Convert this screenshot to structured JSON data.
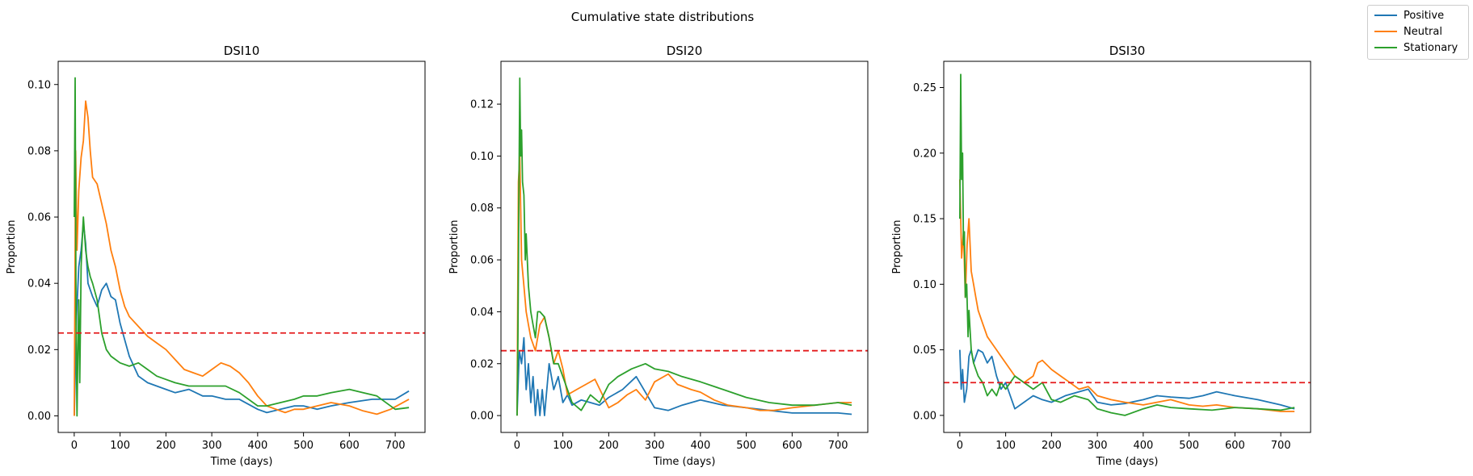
{
  "figure": {
    "title": "Cumulative state distributions"
  },
  "legend": {
    "placement": "top-right",
    "entries": [
      {
        "name": "Positive",
        "color": "#1f77b4"
      },
      {
        "name": "Neutral",
        "color": "#ff7f0e"
      },
      {
        "name": "Stationary",
        "color": "#2ca02c"
      }
    ]
  },
  "chart_data": [
    {
      "type": "line",
      "title": "DSI10",
      "xlabel": "Time (days)",
      "ylabel": "Proportion",
      "xlim": [
        -35,
        765
      ],
      "ylim": [
        -0.005,
        0.107
      ],
      "xticks": [
        0,
        100,
        200,
        300,
        400,
        500,
        600,
        700
      ],
      "xtick_labels": [
        "0",
        "100",
        "200",
        "300",
        "400",
        "500",
        "600",
        "700"
      ],
      "yticks": [
        0,
        0.02,
        0.04,
        0.06,
        0.08,
        0.1
      ],
      "ytick_labels": [
        "0.00",
        "0.02",
        "0.04",
        "0.06",
        "0.08",
        "0.10"
      ],
      "reference_line": {
        "y": 0.025,
        "style": "dashed",
        "color": "#e41a1c"
      },
      "grid": false,
      "series": [
        {
          "name": "Positive",
          "color": "#1f77b4",
          "x": [
            0,
            5,
            10,
            15,
            20,
            25,
            30,
            40,
            50,
            60,
            70,
            80,
            90,
            100,
            120,
            140,
            160,
            180,
            200,
            220,
            250,
            280,
            300,
            330,
            360,
            400,
            420,
            450,
            480,
            500,
            530,
            560,
            600,
            650,
            700,
            730
          ],
          "y": [
            0.0,
            0.03,
            0.045,
            0.05,
            0.058,
            0.052,
            0.04,
            0.036,
            0.033,
            0.038,
            0.04,
            0.036,
            0.035,
            0.028,
            0.018,
            0.012,
            0.01,
            0.009,
            0.008,
            0.007,
            0.008,
            0.006,
            0.006,
            0.005,
            0.005,
            0.002,
            0.001,
            0.002,
            0.003,
            0.003,
            0.002,
            0.003,
            0.004,
            0.005,
            0.005,
            0.0075
          ]
        },
        {
          "name": "Neutral",
          "color": "#ff7f0e",
          "x": [
            0,
            3,
            6,
            10,
            15,
            20,
            25,
            30,
            35,
            40,
            50,
            60,
            70,
            80,
            90,
            100,
            110,
            120,
            140,
            160,
            180,
            200,
            220,
            240,
            260,
            280,
            300,
            320,
            340,
            360,
            380,
            400,
            420,
            440,
            460,
            480,
            500,
            530,
            560,
            600,
            630,
            660,
            690,
            730
          ],
          "y": [
            0.0,
            0.08,
            0.05,
            0.068,
            0.078,
            0.083,
            0.095,
            0.09,
            0.08,
            0.072,
            0.07,
            0.064,
            0.058,
            0.05,
            0.045,
            0.038,
            0.033,
            0.03,
            0.027,
            0.024,
            0.022,
            0.02,
            0.017,
            0.014,
            0.013,
            0.012,
            0.014,
            0.016,
            0.015,
            0.013,
            0.01,
            0.006,
            0.003,
            0.002,
            0.001,
            0.002,
            0.002,
            0.003,
            0.004,
            0.003,
            0.0015,
            0.0005,
            0.002,
            0.005
          ]
        },
        {
          "name": "Stationary",
          "color": "#2ca02c",
          "x": [
            0,
            2,
            4,
            6,
            8,
            10,
            12,
            15,
            18,
            20,
            25,
            30,
            35,
            40,
            50,
            60,
            70,
            80,
            90,
            100,
            120,
            140,
            160,
            180,
            200,
            220,
            250,
            280,
            300,
            330,
            360,
            400,
            420,
            450,
            480,
            500,
            530,
            560,
            600,
            630,
            660,
            700,
            730
          ],
          "y": [
            0.06,
            0.102,
            0.03,
            0.0,
            0.02,
            0.035,
            0.01,
            0.045,
            0.055,
            0.06,
            0.05,
            0.045,
            0.042,
            0.04,
            0.035,
            0.025,
            0.02,
            0.018,
            0.017,
            0.016,
            0.015,
            0.016,
            0.014,
            0.012,
            0.011,
            0.01,
            0.009,
            0.009,
            0.009,
            0.009,
            0.007,
            0.003,
            0.003,
            0.004,
            0.005,
            0.006,
            0.006,
            0.007,
            0.008,
            0.007,
            0.006,
            0.002,
            0.0025
          ]
        }
      ]
    },
    {
      "type": "line",
      "title": "DSI20",
      "xlabel": "Time (days)",
      "ylabel": "Proportion",
      "xlim": [
        -35,
        765
      ],
      "ylim": [
        -0.0065,
        0.1365
      ],
      "xticks": [
        0,
        100,
        200,
        300,
        400,
        500,
        600,
        700
      ],
      "xtick_labels": [
        "0",
        "100",
        "200",
        "300",
        "400",
        "500",
        "600",
        "700"
      ],
      "yticks": [
        0,
        0.02,
        0.04,
        0.06,
        0.08,
        0.1,
        0.12
      ],
      "ytick_labels": [
        "0.00",
        "0.02",
        "0.04",
        "0.06",
        "0.08",
        "0.10",
        "0.12"
      ],
      "reference_line": {
        "y": 0.025,
        "style": "dashed",
        "color": "#e41a1c"
      },
      "grid": false,
      "series": [
        {
          "name": "Positive",
          "color": "#1f77b4",
          "x": [
            0,
            5,
            10,
            15,
            20,
            25,
            30,
            35,
            40,
            45,
            50,
            55,
            60,
            70,
            80,
            90,
            100,
            110,
            120,
            140,
            160,
            180,
            200,
            230,
            260,
            300,
            330,
            360,
            400,
            450,
            500,
            550,
            600,
            650,
            700,
            730
          ],
          "y": [
            0.0,
            0.025,
            0.02,
            0.03,
            0.01,
            0.02,
            0.005,
            0.015,
            0.0,
            0.01,
            0.0,
            0.01,
            0.0,
            0.02,
            0.01,
            0.015,
            0.005,
            0.008,
            0.004,
            0.006,
            0.005,
            0.004,
            0.007,
            0.01,
            0.015,
            0.003,
            0.002,
            0.004,
            0.006,
            0.004,
            0.003,
            0.002,
            0.001,
            0.001,
            0.001,
            0.0005
          ]
        },
        {
          "name": "Neutral",
          "color": "#ff7f0e",
          "x": [
            0,
            3,
            6,
            10,
            15,
            20,
            25,
            30,
            40,
            50,
            60,
            70,
            80,
            90,
            100,
            110,
            130,
            150,
            170,
            200,
            220,
            240,
            260,
            280,
            300,
            330,
            350,
            380,
            400,
            430,
            460,
            500,
            530,
            560,
            600,
            650,
            700,
            730
          ],
          "y": [
            0.0,
            0.09,
            0.1,
            0.06,
            0.05,
            0.04,
            0.035,
            0.03,
            0.025,
            0.035,
            0.038,
            0.03,
            0.02,
            0.025,
            0.018,
            0.008,
            0.01,
            0.012,
            0.014,
            0.003,
            0.005,
            0.008,
            0.01,
            0.006,
            0.013,
            0.016,
            0.012,
            0.01,
            0.009,
            0.006,
            0.004,
            0.003,
            0.002,
            0.002,
            0.003,
            0.004,
            0.005,
            0.005
          ]
        },
        {
          "name": "Stationary",
          "color": "#2ca02c",
          "x": [
            0,
            2,
            4,
            6,
            8,
            10,
            12,
            15,
            18,
            20,
            25,
            30,
            35,
            40,
            45,
            50,
            60,
            70,
            80,
            90,
            100,
            120,
            140,
            160,
            180,
            200,
            220,
            250,
            280,
            300,
            330,
            360,
            400,
            450,
            500,
            550,
            600,
            650,
            700,
            730
          ],
          "y": [
            0.0,
            0.03,
            0.08,
            0.13,
            0.1,
            0.11,
            0.09,
            0.085,
            0.06,
            0.07,
            0.05,
            0.04,
            0.035,
            0.03,
            0.04,
            0.04,
            0.038,
            0.03,
            0.02,
            0.02,
            0.015,
            0.005,
            0.002,
            0.008,
            0.005,
            0.012,
            0.015,
            0.018,
            0.02,
            0.018,
            0.017,
            0.015,
            0.013,
            0.01,
            0.007,
            0.005,
            0.004,
            0.004,
            0.005,
            0.004
          ]
        }
      ]
    },
    {
      "type": "line",
      "title": "DSI30",
      "xlabel": "Time (days)",
      "ylabel": "Proportion",
      "xlim": [
        -35,
        765
      ],
      "ylim": [
        -0.013,
        0.27
      ],
      "xticks": [
        0,
        100,
        200,
        300,
        400,
        500,
        600,
        700
      ],
      "xtick_labels": [
        "0",
        "100",
        "200",
        "300",
        "400",
        "500",
        "600",
        "700"
      ],
      "yticks": [
        0,
        0.05,
        0.1,
        0.15,
        0.2,
        0.25
      ],
      "ytick_labels": [
        "0.00",
        "0.05",
        "0.10",
        "0.15",
        "0.20",
        "0.25"
      ],
      "reference_line": {
        "y": 0.025,
        "style": "dashed",
        "color": "#e41a1c"
      },
      "grid": false,
      "series": [
        {
          "name": "Positive",
          "color": "#1f77b4",
          "x": [
            0,
            3,
            6,
            10,
            15,
            20,
            25,
            30,
            40,
            50,
            60,
            70,
            80,
            90,
            100,
            110,
            120,
            140,
            160,
            180,
            200,
            230,
            260,
            280,
            300,
            330,
            360,
            400,
            430,
            460,
            500,
            530,
            560,
            600,
            650,
            700,
            730
          ],
          "y": [
            0.05,
            0.02,
            0.035,
            0.01,
            0.02,
            0.045,
            0.05,
            0.04,
            0.05,
            0.048,
            0.04,
            0.045,
            0.03,
            0.02,
            0.025,
            0.015,
            0.005,
            0.01,
            0.015,
            0.012,
            0.01,
            0.015,
            0.018,
            0.02,
            0.01,
            0.008,
            0.009,
            0.012,
            0.015,
            0.014,
            0.013,
            0.015,
            0.018,
            0.015,
            0.012,
            0.008,
            0.005
          ]
        },
        {
          "name": "Neutral",
          "color": "#ff7f0e",
          "x": [
            0,
            4,
            8,
            12,
            16,
            20,
            25,
            30,
            35,
            40,
            50,
            60,
            70,
            80,
            90,
            100,
            120,
            140,
            160,
            170,
            180,
            200,
            220,
            240,
            260,
            280,
            300,
            330,
            360,
            400,
            430,
            460,
            500,
            530,
            560,
            600,
            650,
            700,
            730
          ],
          "y": [
            0.18,
            0.12,
            0.14,
            0.09,
            0.13,
            0.15,
            0.11,
            0.1,
            0.09,
            0.08,
            0.07,
            0.06,
            0.055,
            0.05,
            0.045,
            0.04,
            0.03,
            0.025,
            0.03,
            0.04,
            0.042,
            0.035,
            0.03,
            0.025,
            0.02,
            0.022,
            0.015,
            0.012,
            0.01,
            0.008,
            0.01,
            0.012,
            0.008,
            0.007,
            0.008,
            0.006,
            0.005,
            0.003,
            0.003
          ]
        },
        {
          "name": "Stationary",
          "color": "#2ca02c",
          "x": [
            0,
            2,
            4,
            6,
            8,
            10,
            12,
            15,
            18,
            20,
            25,
            30,
            35,
            40,
            50,
            60,
            70,
            80,
            90,
            100,
            120,
            140,
            160,
            180,
            200,
            220,
            250,
            280,
            300,
            330,
            360,
            400,
            430,
            460,
            500,
            550,
            600,
            650,
            700,
            730
          ],
          "y": [
            0.15,
            0.26,
            0.18,
            0.2,
            0.13,
            0.14,
            0.09,
            0.1,
            0.06,
            0.08,
            0.05,
            0.04,
            0.035,
            0.03,
            0.025,
            0.015,
            0.02,
            0.015,
            0.025,
            0.02,
            0.03,
            0.025,
            0.02,
            0.025,
            0.012,
            0.01,
            0.015,
            0.012,
            0.005,
            0.002,
            0.0,
            0.005,
            0.008,
            0.006,
            0.005,
            0.004,
            0.006,
            0.005,
            0.004,
            0.006
          ]
        }
      ]
    }
  ]
}
